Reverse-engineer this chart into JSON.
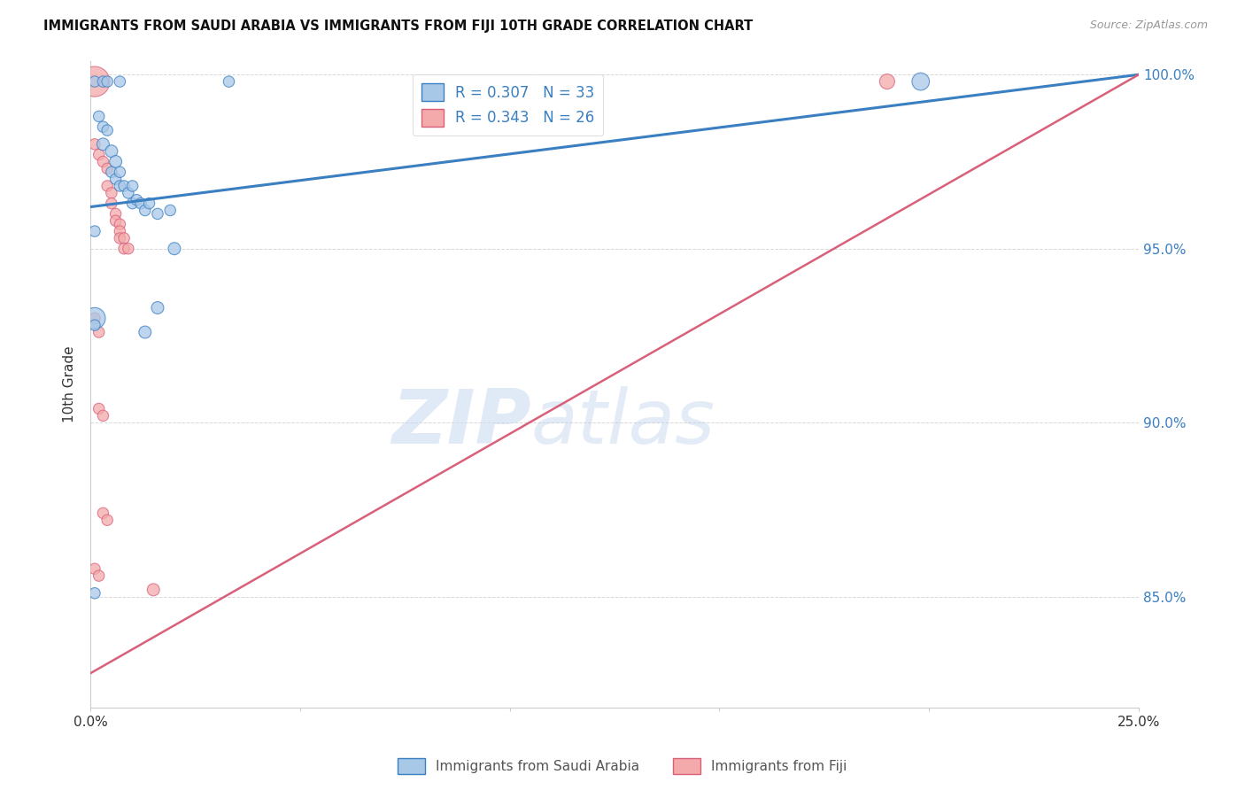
{
  "title": "IMMIGRANTS FROM SAUDI ARABIA VS IMMIGRANTS FROM FIJI 10TH GRADE CORRELATION CHART",
  "source": "Source: ZipAtlas.com",
  "ylabel": "10th Grade",
  "x_min": 0.0,
  "x_max": 0.25,
  "y_min": 0.818,
  "y_max": 1.004,
  "x_ticks": [
    0.0,
    0.05,
    0.1,
    0.15,
    0.2,
    0.25
  ],
  "x_tick_labels": [
    "0.0%",
    "",
    "",
    "",
    "",
    "25.0%"
  ],
  "y_ticks": [
    0.85,
    0.9,
    0.95,
    1.0
  ],
  "y_tick_labels": [
    "85.0%",
    "90.0%",
    "95.0%",
    "100.0%"
  ],
  "legend_entries": [
    {
      "label": "R = 0.307   N = 33",
      "color": "#6baed6"
    },
    {
      "label": "R = 0.343   N = 26",
      "color": "#f08090"
    }
  ],
  "blue_scatter": [
    [
      0.001,
      0.998
    ],
    [
      0.003,
      0.998
    ],
    [
      0.004,
      0.998
    ],
    [
      0.007,
      0.998
    ],
    [
      0.033,
      0.998
    ],
    [
      0.002,
      0.988
    ],
    [
      0.003,
      0.985
    ],
    [
      0.004,
      0.984
    ],
    [
      0.003,
      0.98
    ],
    [
      0.005,
      0.978
    ],
    [
      0.006,
      0.975
    ],
    [
      0.005,
      0.972
    ],
    [
      0.006,
      0.97
    ],
    [
      0.007,
      0.972
    ],
    [
      0.007,
      0.968
    ],
    [
      0.008,
      0.968
    ],
    [
      0.009,
      0.966
    ],
    [
      0.01,
      0.968
    ],
    [
      0.01,
      0.963
    ],
    [
      0.011,
      0.964
    ],
    [
      0.012,
      0.963
    ],
    [
      0.013,
      0.961
    ],
    [
      0.014,
      0.963
    ],
    [
      0.016,
      0.96
    ],
    [
      0.019,
      0.961
    ],
    [
      0.001,
      0.955
    ],
    [
      0.02,
      0.95
    ],
    [
      0.016,
      0.933
    ],
    [
      0.001,
      0.93
    ],
    [
      0.001,
      0.928
    ],
    [
      0.013,
      0.926
    ],
    [
      0.001,
      0.851
    ],
    [
      0.198,
      0.998
    ]
  ],
  "pink_scatter": [
    [
      0.001,
      0.998
    ],
    [
      0.001,
      0.98
    ],
    [
      0.002,
      0.977
    ],
    [
      0.003,
      0.975
    ],
    [
      0.004,
      0.973
    ],
    [
      0.004,
      0.968
    ],
    [
      0.005,
      0.966
    ],
    [
      0.005,
      0.963
    ],
    [
      0.006,
      0.96
    ],
    [
      0.006,
      0.958
    ],
    [
      0.007,
      0.957
    ],
    [
      0.007,
      0.955
    ],
    [
      0.007,
      0.953
    ],
    [
      0.008,
      0.953
    ],
    [
      0.008,
      0.95
    ],
    [
      0.009,
      0.95
    ],
    [
      0.001,
      0.93
    ],
    [
      0.002,
      0.926
    ],
    [
      0.002,
      0.904
    ],
    [
      0.003,
      0.902
    ],
    [
      0.003,
      0.874
    ],
    [
      0.004,
      0.872
    ],
    [
      0.001,
      0.858
    ],
    [
      0.002,
      0.856
    ],
    [
      0.015,
      0.852
    ],
    [
      0.19,
      0.998
    ]
  ],
  "blue_line_x": [
    0.0,
    0.25
  ],
  "blue_line_y": [
    0.962,
    1.0
  ],
  "pink_line_x": [
    0.0,
    0.25
  ],
  "pink_line_y": [
    0.828,
    1.0
  ],
  "blue_color": "#3a7fc1",
  "pink_color": "#d9607a",
  "blue_scatter_color": "#a8c8e8",
  "pink_scatter_color": "#f4aaaa",
  "watermark_zip": "ZIP",
  "watermark_atlas": "atlas",
  "background_color": "#ffffff",
  "grid_color": "#d8d8d8",
  "blue_sizes": [
    80,
    80,
    80,
    80,
    80,
    80,
    80,
    80,
    100,
    100,
    100,
    80,
    80,
    80,
    80,
    80,
    80,
    80,
    80,
    80,
    80,
    80,
    80,
    80,
    80,
    80,
    100,
    100,
    300,
    80,
    100,
    80,
    200
  ],
  "pink_sizes": [
    600,
    80,
    80,
    80,
    80,
    80,
    80,
    80,
    80,
    80,
    80,
    80,
    80,
    80,
    80,
    80,
    80,
    80,
    80,
    80,
    80,
    80,
    80,
    80,
    100,
    150
  ]
}
